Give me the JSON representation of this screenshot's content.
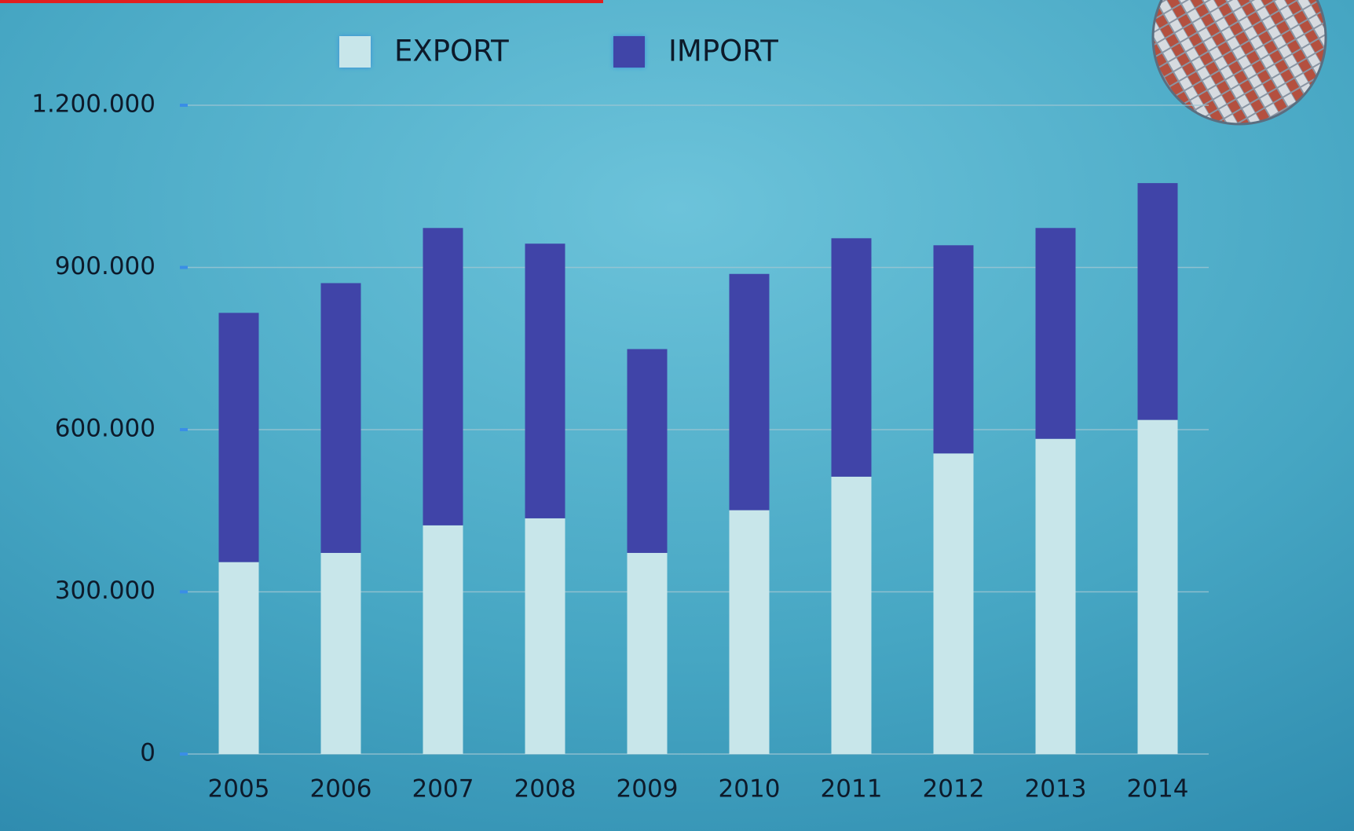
{
  "chart_data": {
    "type": "stacked_bar",
    "categories": [
      "2005",
      "2006",
      "2007",
      "2008",
      "2009",
      "2010",
      "2011",
      "2012",
      "2013",
      "2014"
    ],
    "series": [
      {
        "name": "EXPORT",
        "color": "#c8e6ea",
        "values": [
          355000,
          372000,
          423000,
          436000,
          372000,
          451000,
          513000,
          556000,
          583000,
          618000
        ]
      },
      {
        "name": "IMPORT",
        "color": "#4044a8",
        "values": [
          461000,
          499000,
          550000,
          508000,
          377000,
          437000,
          441000,
          385000,
          390000,
          438000
        ]
      }
    ],
    "ylim": [
      0,
      1200000
    ],
    "yticks": [
      0,
      {
        "value": 300000,
        "label": "300.000"
      },
      {
        "value": 600000,
        "label": "600.000"
      },
      {
        "value": 900000,
        "label": "900.000"
      },
      {
        "value": 1200000,
        "label": "1.200.000"
      }
    ],
    "grid": true
  }
}
